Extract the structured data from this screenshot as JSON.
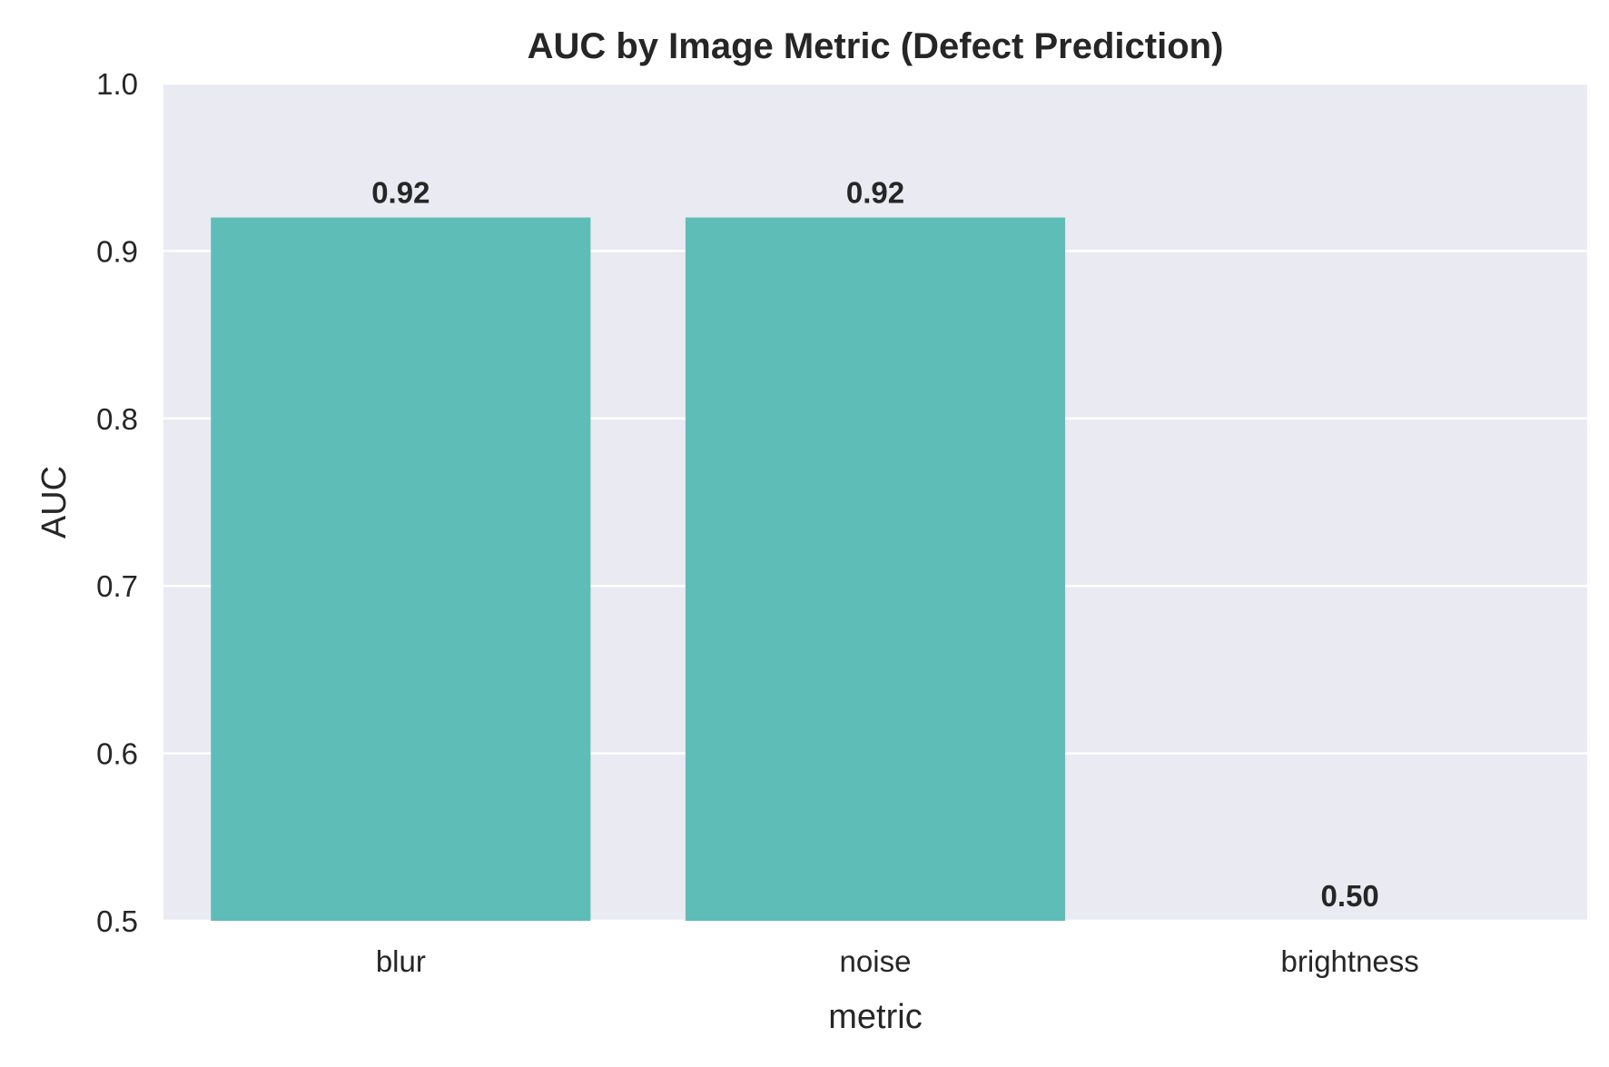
{
  "chart_data": {
    "type": "bar",
    "title": "AUC by Image Metric (Defect Prediction)",
    "xlabel": "metric",
    "ylabel": "AUC",
    "categories": [
      "blur",
      "noise",
      "brightness"
    ],
    "values": [
      0.92,
      0.92,
      0.5
    ],
    "value_labels": [
      "0.92",
      "0.92",
      "0.50"
    ],
    "ylim": [
      0.5,
      1.0
    ],
    "yticks": [
      0.5,
      0.6,
      0.7,
      0.8,
      0.9,
      1.0
    ],
    "ytick_labels": [
      "0.5",
      "0.6",
      "0.7",
      "0.8",
      "0.9",
      "1.0"
    ],
    "grid": true,
    "grid_axis": "y",
    "legend": "none",
    "colors": {
      "bar": "#5fbdb7",
      "plot_background": "#eaeaf2",
      "grid": "#ffffff",
      "text": "#262626"
    }
  }
}
